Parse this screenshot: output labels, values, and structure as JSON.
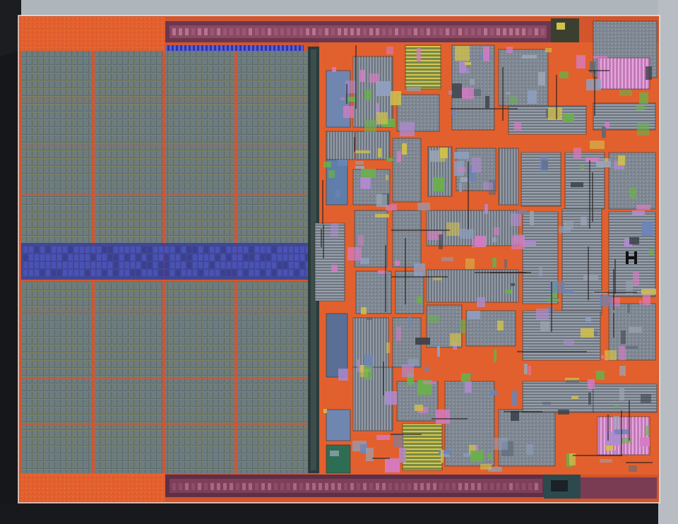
{
  "image": {
    "subject": "die-photograph",
    "colors": {
      "background": "#a9b0b6",
      "background_dark": "#1a1c1e",
      "metal_orange": "#e8612c",
      "metal_red": "#c74a2a",
      "cache_cell": "#5f6f73",
      "cache_grid_line": "#b4a54a",
      "cache_separator": "#d4583a",
      "blue_band": "#3a3fbf",
      "logic_gray": "#7d8590",
      "logic_blue": "#5a78a8",
      "logic_purple": "#8a6ab0",
      "accent_pink": "#d67bc4",
      "accent_yellow": "#d2c04a",
      "accent_green": "#6ab04a",
      "dark_block": "#2a3038"
    }
  }
}
